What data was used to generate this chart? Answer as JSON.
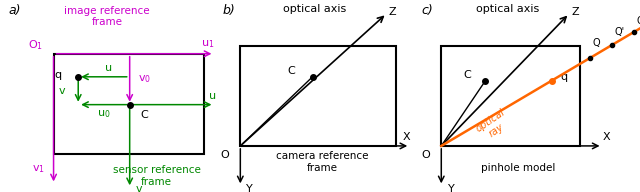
{
  "purple": "#CC00CC",
  "green": "#008800",
  "orange": "#FF6600",
  "black": "#000000",
  "panel_a": {
    "label": "a)",
    "image_ref": "image reference\nframe",
    "sensor_ref": "sensor reference\nframe"
  },
  "panel_b": {
    "label": "b)",
    "optical_axis": "optical axis",
    "camera_ref": "camera reference\nframe"
  },
  "panel_c": {
    "label": "c)",
    "optical_axis": "optical axis",
    "pinhole": "pinhole model",
    "optical_ray": "optical\nray"
  }
}
